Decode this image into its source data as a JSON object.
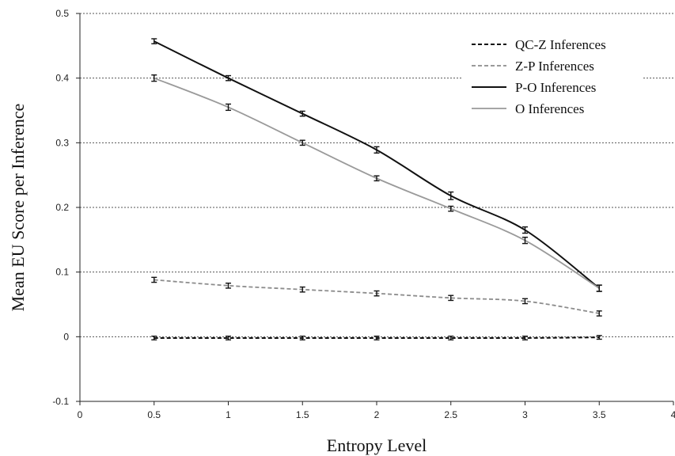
{
  "chart_data": {
    "type": "line",
    "xlabel": "Entropy Level",
    "ylabel": "Mean EU Score per Inference",
    "xlim": [
      0,
      4
    ],
    "ylim": [
      -0.1,
      0.5
    ],
    "x_ticks": [
      "0",
      "0.5",
      "1",
      "1.5",
      "2",
      "2.5",
      "3",
      "3.5",
      "4"
    ],
    "y_ticks": [
      "-0.1",
      "0",
      "0.1",
      "0.2",
      "0.3",
      "0.4",
      "0.5"
    ],
    "grid": "horizontal dashed",
    "legend_position": "top-right",
    "x": [
      0.5,
      1,
      1.5,
      2,
      2.5,
      3,
      3.5
    ],
    "series": [
      {
        "name": "QC-Z Inferences",
        "style": "dashed",
        "color": "#111111",
        "values": [
          -0.002,
          -0.002,
          -0.002,
          -0.002,
          -0.002,
          -0.002,
          -0.001
        ],
        "error": [
          0.001,
          0.001,
          0.001,
          0.001,
          0.001,
          0.001,
          0.001
        ]
      },
      {
        "name": "Z-P Inferences",
        "style": "dashed",
        "color": "#8c8c8c",
        "values": [
          0.088,
          0.079,
          0.073,
          0.067,
          0.06,
          0.055,
          0.036
        ],
        "error": [
          0.002,
          0.002,
          0.002,
          0.002,
          0.002,
          0.002,
          0.002
        ]
      },
      {
        "name": "P-O Inferences",
        "style": "solid",
        "color": "#111111",
        "values": [
          0.457,
          0.4,
          0.345,
          0.289,
          0.218,
          0.165,
          0.075
        ],
        "error": [
          0.002,
          0.002,
          0.002,
          0.003,
          0.004,
          0.003,
          0.003
        ]
      },
      {
        "name": "O Inferences",
        "style": "solid",
        "color": "#9a9a9a",
        "values": [
          0.4,
          0.355,
          0.3,
          0.245,
          0.198,
          0.149,
          0.075
        ],
        "error": [
          0.003,
          0.003,
          0.002,
          0.002,
          0.002,
          0.003,
          0.003
        ]
      }
    ]
  }
}
